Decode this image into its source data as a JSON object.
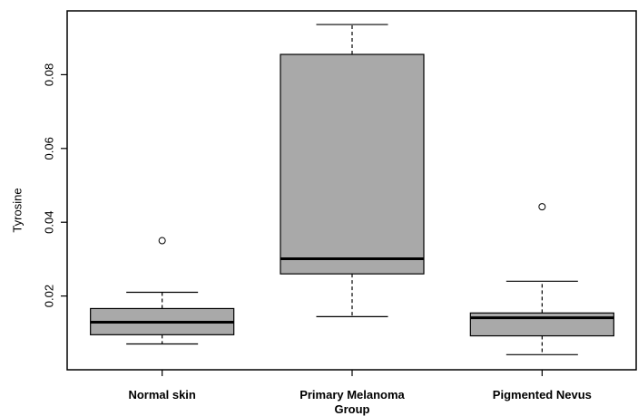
{
  "chart_data": {
    "type": "box",
    "y_label": "Tyrosine",
    "categories": [
      "Normal skin",
      "Primary Melanoma Group",
      "Pigmented Nevus"
    ],
    "color": "#a9a9a9",
    "stats": [
      {
        "whisker_low": 0.007,
        "q1": 0.0095,
        "median": 0.0129,
        "q3": 0.0166,
        "whisker_high": 0.021,
        "outliers": [
          0.035
        ]
      },
      {
        "whisker_low": 0.0144,
        "q1": 0.026,
        "median": 0.0301,
        "q3": 0.0855,
        "whisker_high": 0.0936,
        "outliers": []
      },
      {
        "whisker_low": 0.0041,
        "q1": 0.0092,
        "median": 0.0141,
        "q3": 0.0154,
        "whisker_high": 0.024,
        "outliers": [
          0.0442
        ]
      }
    ],
    "ylim": [
      0,
      0.0973
    ],
    "yticks": [
      0.02,
      0.04,
      0.06,
      0.08
    ]
  }
}
